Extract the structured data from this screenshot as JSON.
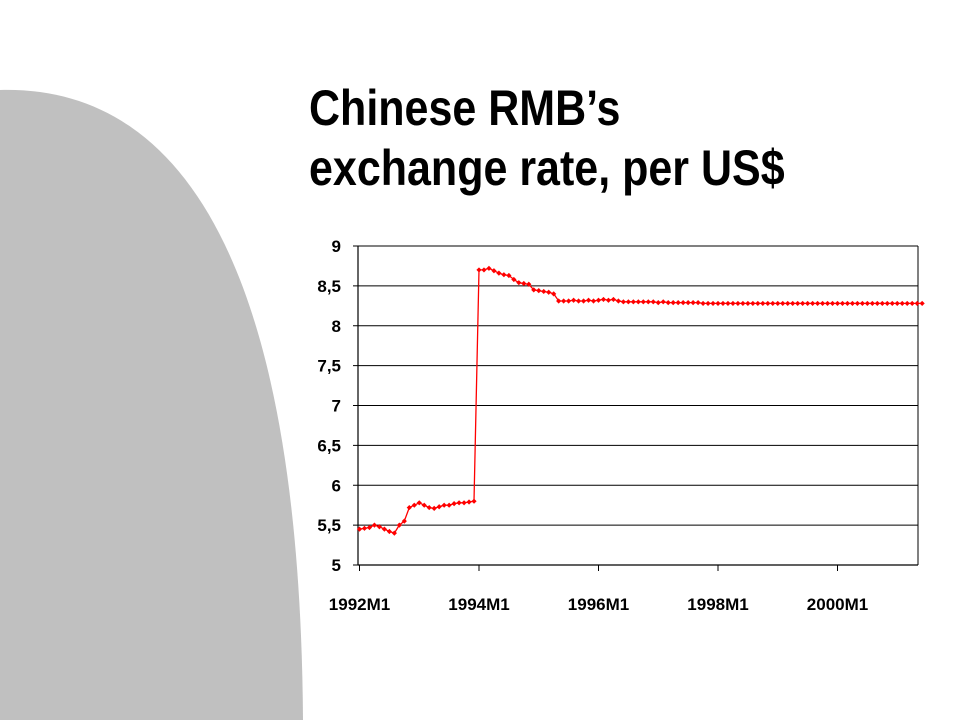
{
  "slide": {
    "title_line1": "Chinese RMB’s",
    "title_line2": "exchange rate, per US$",
    "colors": {
      "decoration": "#c0c0c0",
      "series": "#ff0000",
      "grid": "#000000"
    }
  },
  "chart_data": {
    "type": "line",
    "title": "Chinese RMB’s exchange rate, per US$",
    "xlabel": "",
    "ylabel": "",
    "ylim": [
      5,
      9
    ],
    "yticks": [
      5,
      5.5,
      6,
      6.5,
      7,
      7.5,
      8,
      8.5,
      9
    ],
    "ytick_labels": [
      "5",
      "5,5",
      "6",
      "6,5",
      "7",
      "7,5",
      "8",
      "8,5",
      "9"
    ],
    "xticks": [
      "1992M1",
      "1994M1",
      "1996M1",
      "1998M1",
      "2000M1"
    ],
    "x_start": "1992M1",
    "x_end": "2001M6",
    "grid": true,
    "legend": "none",
    "series": [
      {
        "color": "#ff0000",
        "marker": "diamond",
        "values": [
          5.45,
          5.46,
          5.47,
          5.5,
          5.48,
          5.45,
          5.42,
          5.4,
          5.5,
          5.55,
          5.72,
          5.75,
          5.78,
          5.75,
          5.72,
          5.71,
          5.73,
          5.75,
          5.75,
          5.77,
          5.78,
          5.78,
          5.79,
          5.8,
          8.7,
          8.7,
          8.72,
          8.69,
          8.66,
          8.64,
          8.63,
          8.58,
          8.54,
          8.53,
          8.52,
          8.45,
          8.44,
          8.43,
          8.42,
          8.4,
          8.31,
          8.31,
          8.31,
          8.32,
          8.31,
          8.31,
          8.32,
          8.31,
          8.32,
          8.33,
          8.32,
          8.33,
          8.31,
          8.3,
          8.3,
          8.3,
          8.3,
          8.3,
          8.3,
          8.3,
          8.29,
          8.3,
          8.29,
          8.29,
          8.29,
          8.29,
          8.29,
          8.29,
          8.29,
          8.28,
          8.28,
          8.28,
          8.28,
          8.28,
          8.28,
          8.28,
          8.28,
          8.28,
          8.28,
          8.28,
          8.28,
          8.28,
          8.28,
          8.28,
          8.28,
          8.28,
          8.28,
          8.28,
          8.28,
          8.28,
          8.28,
          8.28,
          8.28,
          8.28,
          8.28,
          8.28,
          8.28,
          8.28,
          8.28,
          8.28,
          8.28,
          8.28,
          8.28,
          8.28,
          8.28,
          8.28,
          8.28,
          8.28,
          8.28,
          8.28,
          8.28,
          8.28,
          8.28,
          8.28
        ]
      }
    ]
  }
}
